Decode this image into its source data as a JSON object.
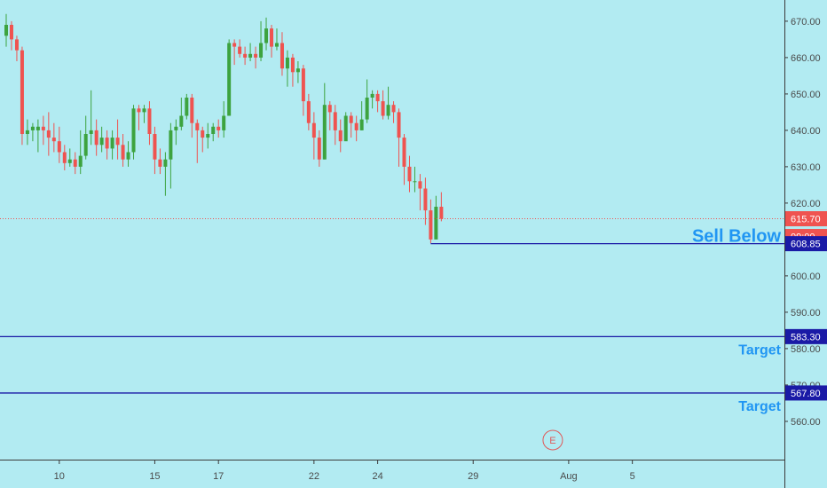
{
  "colors": {
    "background": "#b2ebf2",
    "up": "#26a69a",
    "up_body": "#3da33f",
    "down": "#ef5350",
    "level_line": "#1a1aa6",
    "annotation": "#2196f3",
    "current_price_badge": "#ef5350"
  },
  "chart_data": {
    "type": "candlestick",
    "title": "",
    "xlabel": "",
    "ylabel": "",
    "ylim": [
      549,
      675
    ],
    "y_ticks": [
      "560.00",
      "570.00",
      "580.00",
      "590.00",
      "600.00",
      "610.00",
      "620.00",
      "630.00",
      "640.00",
      "650.00",
      "660.00",
      "670.00"
    ],
    "x_ticks": [
      {
        "label": "10",
        "pos": 10
      },
      {
        "label": "15",
        "pos": 28
      },
      {
        "label": "17",
        "pos": 40
      },
      {
        "label": "22",
        "pos": 58
      },
      {
        "label": "24",
        "pos": 70
      },
      {
        "label": "29",
        "pos": 88
      },
      {
        "label": "Aug",
        "pos": 106
      },
      {
        "label": "5",
        "pos": 118
      }
    ],
    "candles": [
      [
        0,
        666,
        669,
        672,
        663
      ],
      [
        1,
        669,
        665,
        670,
        662
      ],
      [
        2,
        665,
        662,
        666,
        659
      ],
      [
        3,
        662,
        639,
        663,
        636
      ],
      [
        4,
        639,
        640,
        643,
        636
      ],
      [
        5,
        640,
        641,
        642,
        637
      ],
      [
        6,
        640,
        641,
        643,
        634
      ],
      [
        7,
        641,
        640,
        644,
        636
      ],
      [
        8,
        640,
        638,
        645,
        633
      ],
      [
        9,
        638,
        637,
        642,
        634
      ],
      [
        10,
        637,
        634,
        641,
        631
      ],
      [
        11,
        634,
        631,
        636,
        629
      ],
      [
        12,
        631,
        632,
        635,
        630
      ],
      [
        13,
        632,
        630,
        634,
        628
      ],
      [
        14,
        630,
        633,
        640,
        628
      ],
      [
        15,
        633,
        639,
        644,
        632
      ],
      [
        16,
        639,
        640,
        651,
        636
      ],
      [
        17,
        640,
        636,
        643,
        633
      ],
      [
        18,
        636,
        638,
        641,
        634
      ],
      [
        19,
        638,
        635,
        640,
        632
      ],
      [
        20,
        635,
        638,
        640,
        632
      ],
      [
        21,
        638,
        636,
        643,
        632
      ],
      [
        22,
        636,
        632,
        639,
        630
      ],
      [
        23,
        632,
        634,
        637,
        630
      ],
      [
        24,
        634,
        646,
        647,
        632
      ],
      [
        25,
        646,
        645,
        647,
        640
      ],
      [
        26,
        645,
        646,
        647,
        642
      ],
      [
        27,
        646,
        639,
        648,
        636
      ],
      [
        28,
        639,
        632,
        641,
        628
      ],
      [
        29,
        632,
        630,
        635,
        628
      ],
      [
        30,
        630,
        632,
        634,
        622
      ],
      [
        31,
        632,
        640,
        642,
        624
      ],
      [
        32,
        640,
        641,
        643,
        636
      ],
      [
        33,
        641,
        644,
        649,
        640
      ],
      [
        34,
        644,
        649,
        650,
        643
      ],
      [
        35,
        649,
        642,
        650,
        638
      ],
      [
        36,
        642,
        640,
        643,
        631
      ],
      [
        37,
        640,
        638,
        641,
        634
      ],
      [
        38,
        638,
        639,
        642,
        635
      ],
      [
        39,
        639,
        641,
        642,
        637
      ],
      [
        40,
        641,
        640,
        643,
        638
      ],
      [
        41,
        640,
        644,
        648,
        638
      ],
      [
        42,
        644,
        664,
        665,
        644
      ],
      [
        43,
        664,
        663,
        665,
        658
      ],
      [
        44,
        663,
        661,
        665,
        660
      ],
      [
        45,
        661,
        660,
        663,
        658
      ],
      [
        46,
        660,
        661,
        664,
        659
      ],
      [
        47,
        661,
        660,
        663,
        657
      ],
      [
        48,
        660,
        664,
        670,
        659
      ],
      [
        49,
        664,
        668,
        671,
        662
      ],
      [
        50,
        668,
        663,
        669,
        660
      ],
      [
        51,
        663,
        664,
        668,
        662
      ],
      [
        52,
        664,
        657,
        667,
        655
      ],
      [
        53,
        657,
        660,
        662,
        652
      ],
      [
        54,
        660,
        656,
        661,
        652
      ],
      [
        55,
        656,
        657,
        659,
        653
      ],
      [
        56,
        657,
        648,
        658,
        644
      ],
      [
        57,
        648,
        642,
        650,
        640
      ],
      [
        58,
        642,
        638,
        645,
        632
      ],
      [
        59,
        638,
        632,
        640,
        630
      ],
      [
        60,
        632,
        647,
        653,
        632
      ],
      [
        61,
        647,
        645,
        648,
        640
      ],
      [
        62,
        645,
        640,
        647,
        636
      ],
      [
        63,
        640,
        637,
        643,
        634
      ],
      [
        64,
        637,
        644,
        645,
        640
      ],
      [
        65,
        644,
        642,
        645,
        638
      ],
      [
        66,
        642,
        640,
        644,
        637
      ],
      [
        67,
        640,
        643,
        648,
        640
      ],
      [
        68,
        643,
        649,
        654,
        642
      ],
      [
        69,
        649,
        650,
        651,
        646
      ],
      [
        70,
        650,
        648,
        651,
        645
      ],
      [
        71,
        648,
        644,
        651,
        643
      ],
      [
        72,
        644,
        647,
        652,
        643
      ],
      [
        73,
        647,
        645,
        648,
        642
      ],
      [
        74,
        645,
        638,
        646,
        630
      ],
      [
        75,
        638,
        630,
        639,
        625
      ],
      [
        76,
        630,
        626,
        633,
        623
      ],
      [
        77,
        626,
        626,
        630,
        623
      ],
      [
        78,
        626,
        624,
        628,
        618
      ],
      [
        79,
        624,
        618,
        627,
        614
      ],
      [
        80,
        618,
        610,
        621,
        609
      ],
      [
        81,
        610,
        619,
        622,
        614
      ],
      [
        82,
        619,
        615.7,
        623,
        615
      ]
    ],
    "levels": [
      {
        "value": 608.85,
        "label": "608.85",
        "annotation": "Sell Below"
      },
      {
        "value": 583.3,
        "label": "583.30",
        "annotation": "Target"
      },
      {
        "value": 567.8,
        "label": "567.80",
        "annotation": "Target"
      }
    ],
    "current_price": {
      "value": 615.7,
      "label": "615.70",
      "countdown": "09:00"
    },
    "event_marker": {
      "label": "E",
      "pos": 103
    }
  }
}
